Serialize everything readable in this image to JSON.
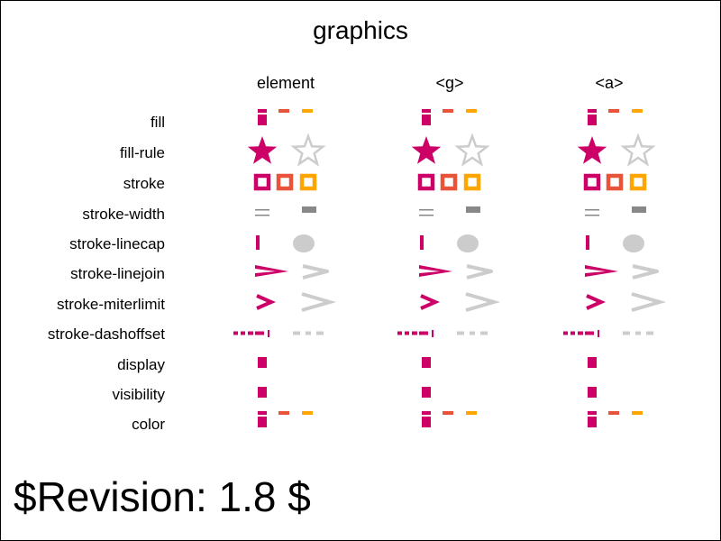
{
  "title": "graphics",
  "columns": [
    "element",
    "<g>",
    "<a>"
  ],
  "rows": [
    "fill",
    "fill-rule",
    "stroke",
    "stroke-width",
    "stroke-linecap",
    "stroke-linejoin",
    "stroke-miterlimit",
    "stroke-dashoffset",
    "display",
    "visibility",
    "color"
  ],
  "revision": "$Revision: 1.8 $",
  "colors": {
    "magenta": "#cc0066",
    "orange_red": "#e8533a",
    "orange": "#ffa500",
    "light_gray": "#cccccc",
    "mid_gray": "#888888"
  }
}
